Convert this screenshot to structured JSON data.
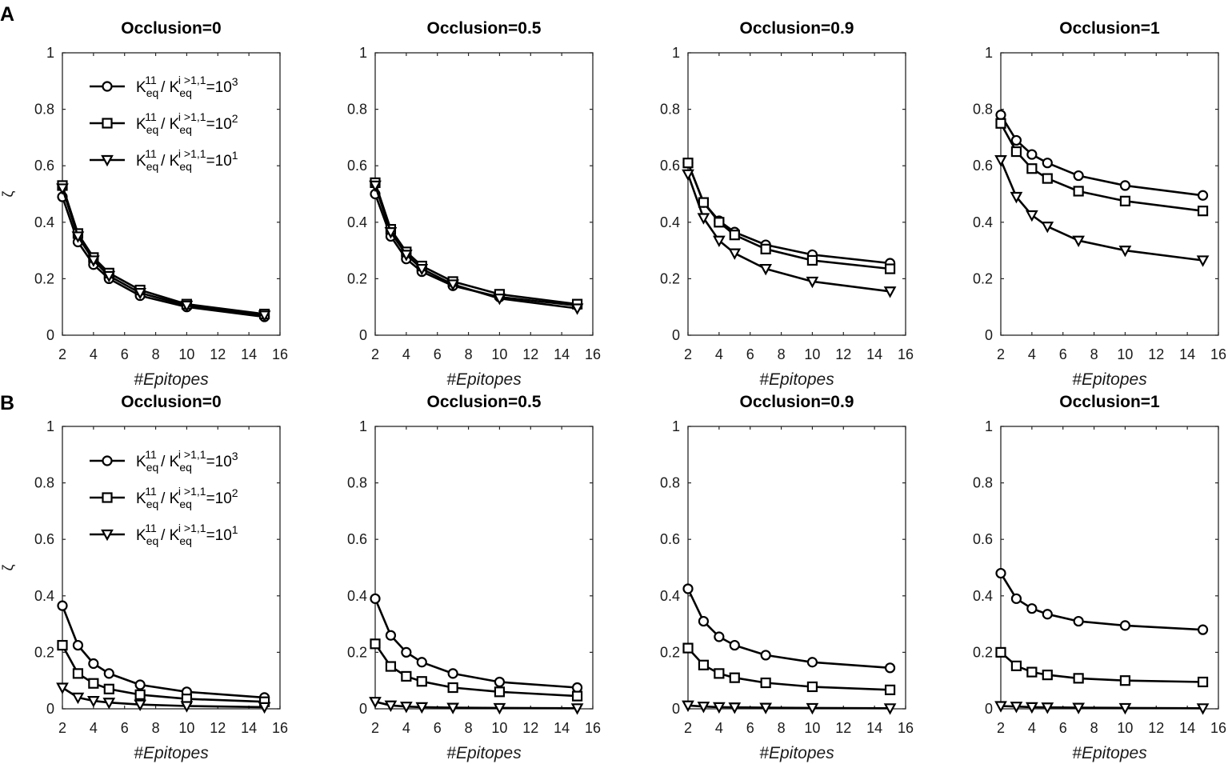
{
  "panel_labels": [
    "A",
    "B"
  ],
  "legend": {
    "entries": [
      {
        "marker": "circle",
        "k": "K",
        "sub1": "eq",
        "sup1": "11",
        "slash": " / ",
        "sub2": "eq",
        "sup2": "i >1,1",
        "eq": "=10",
        "exp": "3"
      },
      {
        "marker": "square",
        "k": "K",
        "sub1": "eq",
        "sup1": "11",
        "slash": " / ",
        "sub2": "eq",
        "sup2": "i >1,1",
        "eq": "=10",
        "exp": "2"
      },
      {
        "marker": "triangle",
        "k": "K",
        "sub1": "eq",
        "sup1": "11",
        "slash": " / ",
        "sub2": "eq",
        "sup2": "i >1,1",
        "eq": "=10",
        "exp": "1"
      }
    ]
  },
  "chart_data": [
    {
      "panel": "A",
      "type": "line",
      "title": "Occlusion=0",
      "xlabel": "#Epitopes",
      "ylabel": "ζ",
      "xlim": [
        2,
        16
      ],
      "ylim": [
        0,
        1
      ],
      "xticks": [
        2,
        4,
        6,
        8,
        10,
        12,
        14,
        16
      ],
      "yticks": [
        0,
        0.2,
        0.4,
        0.6,
        0.8,
        1
      ],
      "ytick_labels": [
        "0",
        "0.2",
        "0.4",
        "0.6",
        "0.8",
        "1"
      ],
      "x": [
        2,
        3,
        4,
        5,
        7,
        10,
        15
      ],
      "series": [
        {
          "name": "10^3",
          "marker": "circle",
          "values": [
            0.49,
            0.33,
            0.25,
            0.2,
            0.14,
            0.1,
            0.065
          ]
        },
        {
          "name": "10^2",
          "marker": "square",
          "values": [
            0.53,
            0.36,
            0.275,
            0.22,
            0.16,
            0.11,
            0.075
          ]
        },
        {
          "name": "10^1",
          "marker": "triangle",
          "values": [
            0.52,
            0.35,
            0.265,
            0.21,
            0.15,
            0.105,
            0.07
          ]
        }
      ]
    },
    {
      "panel": "A",
      "type": "line",
      "title": "Occlusion=0.5",
      "xlabel": "#Epitopes",
      "ylabel": "",
      "xlim": [
        2,
        16
      ],
      "ylim": [
        0,
        1
      ],
      "xticks": [
        2,
        4,
        6,
        8,
        10,
        12,
        14,
        16
      ],
      "yticks": [
        0,
        0.2,
        0.4,
        0.6,
        0.8,
        1
      ],
      "ytick_labels": [
        "0",
        "0.2",
        "0.4",
        "0.6",
        "0.8",
        "1"
      ],
      "x": [
        2,
        3,
        4,
        5,
        7,
        10,
        15
      ],
      "series": [
        {
          "name": "10^3",
          "marker": "circle",
          "values": [
            0.5,
            0.35,
            0.27,
            0.225,
            0.175,
            0.135,
            0.105
          ]
        },
        {
          "name": "10^2",
          "marker": "square",
          "values": [
            0.54,
            0.375,
            0.295,
            0.245,
            0.19,
            0.145,
            0.11
          ]
        },
        {
          "name": "10^1",
          "marker": "triangle",
          "values": [
            0.53,
            0.365,
            0.285,
            0.235,
            0.18,
            0.13,
            0.095
          ]
        }
      ]
    },
    {
      "panel": "A",
      "type": "line",
      "title": "Occlusion=0.9",
      "xlabel": "#Epitopes",
      "ylabel": "",
      "xlim": [
        2,
        16
      ],
      "ylim": [
        0,
        1
      ],
      "xticks": [
        2,
        4,
        6,
        8,
        10,
        12,
        14,
        16
      ],
      "yticks": [
        0,
        0.2,
        0.4,
        0.6,
        0.8,
        1
      ],
      "ytick_labels": [
        "0",
        "0.2",
        "0.4",
        "0.6",
        "0.8",
        "1"
      ],
      "x": [
        2,
        3,
        4,
        5,
        7,
        10,
        15
      ],
      "series": [
        {
          "name": "10^3",
          "marker": "circle",
          "values": [
            0.61,
            0.47,
            0.405,
            0.365,
            0.32,
            0.285,
            0.255
          ]
        },
        {
          "name": "10^2",
          "marker": "square",
          "values": [
            0.61,
            0.47,
            0.4,
            0.355,
            0.305,
            0.265,
            0.235
          ]
        },
        {
          "name": "10^1",
          "marker": "triangle",
          "values": [
            0.57,
            0.415,
            0.335,
            0.29,
            0.235,
            0.19,
            0.155
          ]
        }
      ]
    },
    {
      "panel": "A",
      "type": "line",
      "title": "Occlusion=1",
      "xlabel": "#Epitopes",
      "ylabel": "",
      "xlim": [
        2,
        16
      ],
      "ylim": [
        0,
        1
      ],
      "xticks": [
        2,
        4,
        6,
        8,
        10,
        12,
        14,
        16
      ],
      "yticks": [
        0,
        0.2,
        0.4,
        0.6,
        0.8,
        1
      ],
      "ytick_labels": [
        "0",
        "0.2",
        "0.4",
        "0.6",
        "0.8",
        "1"
      ],
      "x": [
        2,
        3,
        4,
        5,
        7,
        10,
        15
      ],
      "series": [
        {
          "name": "10^3",
          "marker": "circle",
          "values": [
            0.78,
            0.69,
            0.64,
            0.61,
            0.565,
            0.53,
            0.495
          ]
        },
        {
          "name": "10^2",
          "marker": "square",
          "values": [
            0.75,
            0.65,
            0.59,
            0.555,
            0.51,
            0.475,
            0.44
          ]
        },
        {
          "name": "10^1",
          "marker": "triangle",
          "values": [
            0.62,
            0.49,
            0.425,
            0.385,
            0.335,
            0.3,
            0.265
          ]
        }
      ]
    },
    {
      "panel": "B",
      "type": "line",
      "title": "Occlusion=0",
      "xlabel": "#Epitopes",
      "ylabel": "ζ",
      "xlim": [
        2,
        16
      ],
      "ylim": [
        0,
        1
      ],
      "xticks": [
        2,
        4,
        6,
        8,
        10,
        12,
        14,
        16
      ],
      "yticks": [
        0,
        0.2,
        0.4,
        0.6,
        0.8,
        1
      ],
      "ytick_labels": [
        "0",
        "0.2",
        "0.4",
        "0.6",
        "0.8",
        "1"
      ],
      "x": [
        2,
        3,
        4,
        5,
        7,
        10,
        15
      ],
      "series": [
        {
          "name": "10^3",
          "marker": "circle",
          "values": [
            0.365,
            0.225,
            0.16,
            0.125,
            0.085,
            0.06,
            0.04
          ]
        },
        {
          "name": "10^2",
          "marker": "square",
          "values": [
            0.225,
            0.125,
            0.09,
            0.07,
            0.05,
            0.035,
            0.025
          ]
        },
        {
          "name": "10^1",
          "marker": "triangle",
          "values": [
            0.075,
            0.04,
            0.028,
            0.022,
            0.015,
            0.01,
            0.006
          ]
        }
      ]
    },
    {
      "panel": "B",
      "type": "line",
      "title": "Occlusion=0.5",
      "xlabel": "#Epitopes",
      "ylabel": "",
      "xlim": [
        2,
        16
      ],
      "ylim": [
        0,
        1
      ],
      "xticks": [
        2,
        4,
        6,
        8,
        10,
        12,
        14,
        16
      ],
      "yticks": [
        0,
        0.2,
        0.4,
        0.6,
        0.8,
        1
      ],
      "ytick_labels": [
        "0",
        "0.2",
        "0.4",
        "0.6",
        "0.8",
        "1"
      ],
      "x": [
        2,
        3,
        4,
        5,
        7,
        10,
        15
      ],
      "series": [
        {
          "name": "10^3",
          "marker": "circle",
          "values": [
            0.39,
            0.26,
            0.2,
            0.165,
            0.125,
            0.095,
            0.075
          ]
        },
        {
          "name": "10^2",
          "marker": "square",
          "values": [
            0.23,
            0.15,
            0.115,
            0.097,
            0.075,
            0.06,
            0.045
          ]
        },
        {
          "name": "10^1",
          "marker": "triangle",
          "values": [
            0.025,
            0.012,
            0.008,
            0.006,
            0.004,
            0.003,
            0.002
          ]
        }
      ]
    },
    {
      "panel": "B",
      "type": "line",
      "title": "Occlusion=0.9",
      "xlabel": "#Epitopes",
      "ylabel": "",
      "xlim": [
        2,
        16
      ],
      "ylim": [
        0,
        1
      ],
      "xticks": [
        2,
        4,
        6,
        8,
        10,
        12,
        14,
        16
      ],
      "yticks": [
        0,
        0.2,
        0.4,
        0.6,
        0.8,
        1
      ],
      "ytick_labels": [
        "0",
        "0.2",
        "0.4",
        "0.6",
        "0.8",
        "1"
      ],
      "x": [
        2,
        3,
        4,
        5,
        7,
        10,
        15
      ],
      "series": [
        {
          "name": "10^3",
          "marker": "circle",
          "values": [
            0.425,
            0.31,
            0.255,
            0.225,
            0.19,
            0.165,
            0.145
          ]
        },
        {
          "name": "10^2",
          "marker": "square",
          "values": [
            0.215,
            0.155,
            0.125,
            0.11,
            0.092,
            0.078,
            0.067
          ]
        },
        {
          "name": "10^1",
          "marker": "triangle",
          "values": [
            0.012,
            0.008,
            0.006,
            0.005,
            0.004,
            0.003,
            0.002
          ]
        }
      ]
    },
    {
      "panel": "B",
      "type": "line",
      "title": "Occlusion=1",
      "xlabel": "#Epitopes",
      "ylabel": "",
      "xlim": [
        2,
        16
      ],
      "ylim": [
        0,
        1
      ],
      "xticks": [
        2,
        4,
        6,
        8,
        10,
        12,
        14,
        16
      ],
      "yticks": [
        0,
        0.2,
        0.4,
        0.6,
        0.8,
        1
      ],
      "ytick_labels": [
        "0",
        "0.2",
        "0.4",
        "0.6",
        "0.8",
        "1"
      ],
      "x": [
        2,
        3,
        4,
        5,
        7,
        10,
        15
      ],
      "series": [
        {
          "name": "10^3",
          "marker": "circle",
          "values": [
            0.48,
            0.39,
            0.355,
            0.335,
            0.31,
            0.295,
            0.28
          ]
        },
        {
          "name": "10^2",
          "marker": "square",
          "values": [
            0.2,
            0.152,
            0.13,
            0.12,
            0.108,
            0.1,
            0.095
          ]
        },
        {
          "name": "10^1",
          "marker": "triangle",
          "values": [
            0.01,
            0.008,
            0.006,
            0.005,
            0.004,
            0.003,
            0.002
          ]
        }
      ]
    }
  ]
}
